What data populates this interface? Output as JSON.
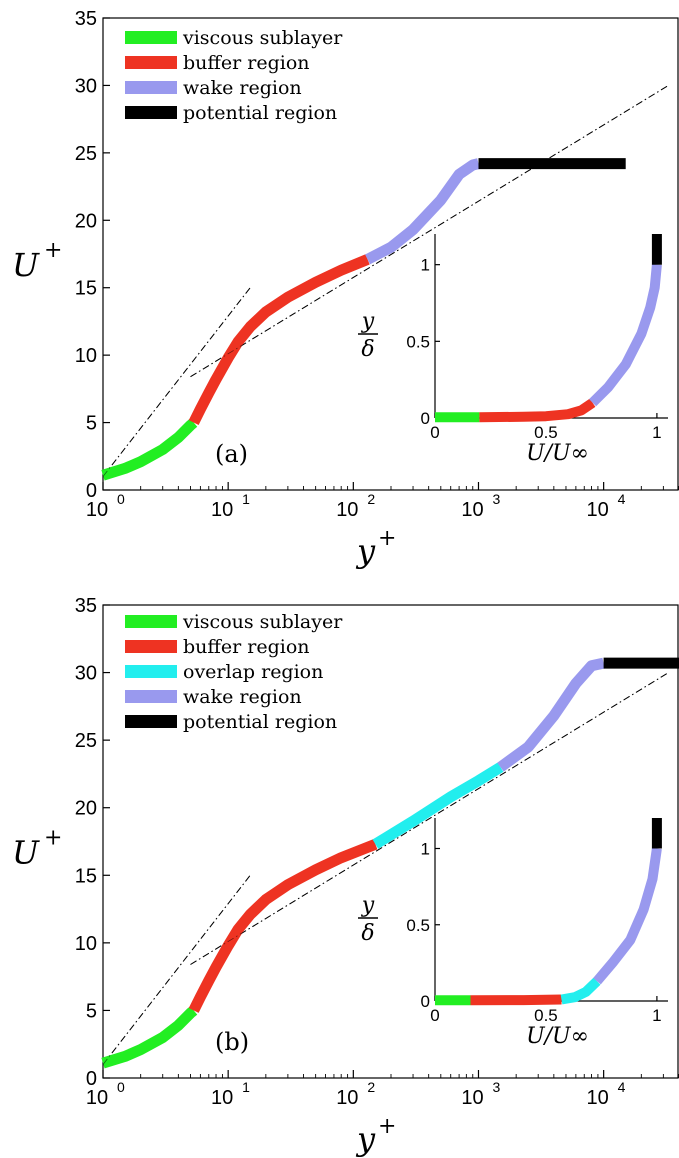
{
  "chart_data": [
    {
      "type": "line",
      "panel_label": "(a)",
      "xscale": "log",
      "xlim": [
        1,
        40000
      ],
      "ylim": [
        0,
        35
      ],
      "xticks": [
        1,
        10,
        100,
        1000,
        10000
      ],
      "xtick_labels": [
        {
          "base": "10",
          "exp": "0"
        },
        {
          "base": "10",
          "exp": "1"
        },
        {
          "base": "10",
          "exp": "2"
        },
        {
          "base": "10",
          "exp": "3"
        },
        {
          "base": "10",
          "exp": "4"
        }
      ],
      "yticks": [
        0,
        5,
        10,
        15,
        20,
        25,
        30,
        35
      ],
      "xlabel": {
        "main": "y",
        "sup": "+"
      },
      "ylabel": {
        "main": "U",
        "sup": "+"
      },
      "legend": [
        {
          "label": "viscous sublayer",
          "color": "#22ee22"
        },
        {
          "label": "buffer region",
          "color": "#ee3322"
        },
        {
          "label": "wake region",
          "color": "#9999ee"
        },
        {
          "label": "potential region",
          "color": "#000000"
        }
      ],
      "series": [
        {
          "region": "viscous sublayer",
          "color": "#22ee22",
          "points": [
            [
              1.0,
              1.1
            ],
            [
              1.5,
              1.6
            ],
            [
              2.0,
              2.1
            ],
            [
              3.0,
              3.0
            ],
            [
              4.0,
              3.9
            ],
            [
              5.0,
              4.8
            ],
            [
              5.3,
              5.0
            ]
          ]
        },
        {
          "region": "buffer region",
          "color": "#ee3322",
          "points": [
            [
              5.3,
              5.0
            ],
            [
              6.0,
              6.0
            ],
            [
              7.0,
              7.2
            ],
            [
              8.0,
              8.2
            ],
            [
              10.0,
              9.8
            ],
            [
              12.0,
              11.0
            ],
            [
              15.0,
              12.1
            ],
            [
              20.0,
              13.2
            ],
            [
              30.0,
              14.3
            ],
            [
              50.0,
              15.4
            ],
            [
              80.0,
              16.3
            ],
            [
              130.0,
              17.1
            ]
          ]
        },
        {
          "region": "wake region",
          "color": "#9999ee",
          "points": [
            [
              130.0,
              17.1
            ],
            [
              200.0,
              18.0
            ],
            [
              300.0,
              19.3
            ],
            [
              500.0,
              21.5
            ],
            [
              700.0,
              23.4
            ],
            [
              900.0,
              24.1
            ],
            [
              1000.0,
              24.2
            ]
          ]
        },
        {
          "region": "potential region",
          "color": "#000000",
          "points": [
            [
              1000.0,
              24.2
            ],
            [
              15000.0,
              24.2
            ]
          ]
        }
      ],
      "reference_lines": [
        {
          "name": "viscous law",
          "points": [
            [
              1,
              1
            ],
            [
              15,
              15
            ]
          ]
        },
        {
          "name": "log law",
          "points": [
            [
              5,
              8.4
            ],
            [
              33000,
              30
            ]
          ]
        }
      ],
      "inset": {
        "xlabel": "U/U∞",
        "ylabel": "y/δ",
        "xlim": [
          0,
          1.05
        ],
        "ylim": [
          0,
          1.2
        ],
        "xticks": [
          0,
          0.5,
          1
        ],
        "xtick_labels": [
          "0",
          "0.5",
          "1"
        ],
        "yticks": [
          0,
          0.5,
          1
        ],
        "ytick_labels": [
          "0",
          "0.5",
          "1"
        ],
        "series": [
          {
            "region": "viscous sublayer",
            "color": "#22ee22",
            "points": [
              [
                0.0,
                0.005
              ],
              [
                0.2,
                0.005
              ]
            ]
          },
          {
            "region": "buffer region",
            "color": "#ee3322",
            "points": [
              [
                0.2,
                0.005
              ],
              [
                0.4,
                0.008
              ],
              [
                0.5,
                0.012
              ],
              [
                0.6,
                0.025
              ],
              [
                0.66,
                0.05
              ],
              [
                0.71,
                0.1
              ]
            ]
          },
          {
            "region": "wake region",
            "color": "#9999ee",
            "points": [
              [
                0.71,
                0.1
              ],
              [
                0.78,
                0.2
              ],
              [
                0.86,
                0.35
              ],
              [
                0.93,
                0.55
              ],
              [
                0.97,
                0.72
              ],
              [
                0.99,
                0.85
              ],
              [
                1.0,
                1.0
              ]
            ]
          },
          {
            "region": "potential region",
            "color": "#000000",
            "points": [
              [
                1.0,
                1.0
              ],
              [
                1.0,
                1.2
              ]
            ]
          }
        ]
      }
    },
    {
      "type": "line",
      "panel_label": "(b)",
      "xscale": "log",
      "xlim": [
        1,
        40000
      ],
      "ylim": [
        0,
        35
      ],
      "xticks": [
        1,
        10,
        100,
        1000,
        10000
      ],
      "xtick_labels": [
        {
          "base": "10",
          "exp": "0"
        },
        {
          "base": "10",
          "exp": "1"
        },
        {
          "base": "10",
          "exp": "2"
        },
        {
          "base": "10",
          "exp": "3"
        },
        {
          "base": "10",
          "exp": "4"
        }
      ],
      "yticks": [
        0,
        5,
        10,
        15,
        20,
        25,
        30,
        35
      ],
      "xlabel": {
        "main": "y",
        "sup": "+"
      },
      "ylabel": {
        "main": "U",
        "sup": "+"
      },
      "legend": [
        {
          "label": "viscous sublayer",
          "color": "#22ee22"
        },
        {
          "label": "buffer region",
          "color": "#ee3322"
        },
        {
          "label": "overlap region",
          "color": "#22eeee"
        },
        {
          "label": "wake region",
          "color": "#9999ee"
        },
        {
          "label": "potential region",
          "color": "#000000"
        }
      ],
      "series": [
        {
          "region": "viscous sublayer",
          "color": "#22ee22",
          "points": [
            [
              1.0,
              1.1
            ],
            [
              1.5,
              1.6
            ],
            [
              2.0,
              2.1
            ],
            [
              3.0,
              3.0
            ],
            [
              4.0,
              3.9
            ],
            [
              5.0,
              4.8
            ],
            [
              5.3,
              5.0
            ]
          ]
        },
        {
          "region": "buffer region",
          "color": "#ee3322",
          "points": [
            [
              5.3,
              5.0
            ],
            [
              6.0,
              6.0
            ],
            [
              7.0,
              7.2
            ],
            [
              8.0,
              8.2
            ],
            [
              10.0,
              9.8
            ],
            [
              12.0,
              11.0
            ],
            [
              15.0,
              12.1
            ],
            [
              20.0,
              13.2
            ],
            [
              30.0,
              14.3
            ],
            [
              50.0,
              15.4
            ],
            [
              80.0,
              16.3
            ],
            [
              150.0,
              17.3
            ]
          ]
        },
        {
          "region": "overlap region",
          "color": "#22eeee",
          "points": [
            [
              150.0,
              17.3
            ],
            [
              300.0,
              19.0
            ],
            [
              600.0,
              20.8
            ],
            [
              1000.0,
              22.0
            ],
            [
              1500.0,
              23.0
            ]
          ]
        },
        {
          "region": "wake region",
          "color": "#9999ee",
          "points": [
            [
              1500.0,
              23.0
            ],
            [
              2500.0,
              24.5
            ],
            [
              4000.0,
              26.8
            ],
            [
              6000.0,
              29.2
            ],
            [
              8000.0,
              30.5
            ],
            [
              10000.0,
              30.7
            ]
          ]
        },
        {
          "region": "potential region",
          "color": "#000000",
          "points": [
            [
              10000.0,
              30.7
            ],
            [
              40000.0,
              30.7
            ]
          ]
        }
      ],
      "reference_lines": [
        {
          "name": "viscous law",
          "points": [
            [
              1,
              1
            ],
            [
              15,
              15
            ]
          ]
        },
        {
          "name": "log law",
          "points": [
            [
              5,
              8.4
            ],
            [
              33000,
              30
            ]
          ]
        }
      ],
      "inset": {
        "xlabel": "U/U∞",
        "ylabel": "y/δ",
        "xlim": [
          0,
          1.05
        ],
        "ylim": [
          0,
          1.2
        ],
        "xticks": [
          0,
          0.5,
          1
        ],
        "xtick_labels": [
          "0",
          "0.5",
          "1"
        ],
        "yticks": [
          0,
          0.5,
          1
        ],
        "ytick_labels": [
          "0",
          "0.5",
          "1"
        ],
        "series": [
          {
            "region": "viscous sublayer",
            "color": "#22ee22",
            "points": [
              [
                0.0,
                0.005
              ],
              [
                0.16,
                0.005
              ]
            ]
          },
          {
            "region": "buffer region",
            "color": "#ee3322",
            "points": [
              [
                0.16,
                0.005
              ],
              [
                0.4,
                0.006
              ],
              [
                0.57,
                0.01
              ]
            ]
          },
          {
            "region": "overlap region",
            "color": "#22eeee",
            "points": [
              [
                0.57,
                0.01
              ],
              [
                0.63,
                0.025
              ],
              [
                0.68,
                0.06
              ],
              [
                0.73,
                0.13
              ]
            ]
          },
          {
            "region": "wake region",
            "color": "#9999ee",
            "points": [
              [
                0.73,
                0.13
              ],
              [
                0.8,
                0.25
              ],
              [
                0.88,
                0.4
              ],
              [
                0.94,
                0.6
              ],
              [
                0.98,
                0.8
              ],
              [
                1.0,
                1.0
              ]
            ]
          },
          {
            "region": "potential region",
            "color": "#000000",
            "points": [
              [
                1.0,
                1.0
              ],
              [
                1.0,
                1.2
              ]
            ]
          }
        ]
      }
    }
  ]
}
